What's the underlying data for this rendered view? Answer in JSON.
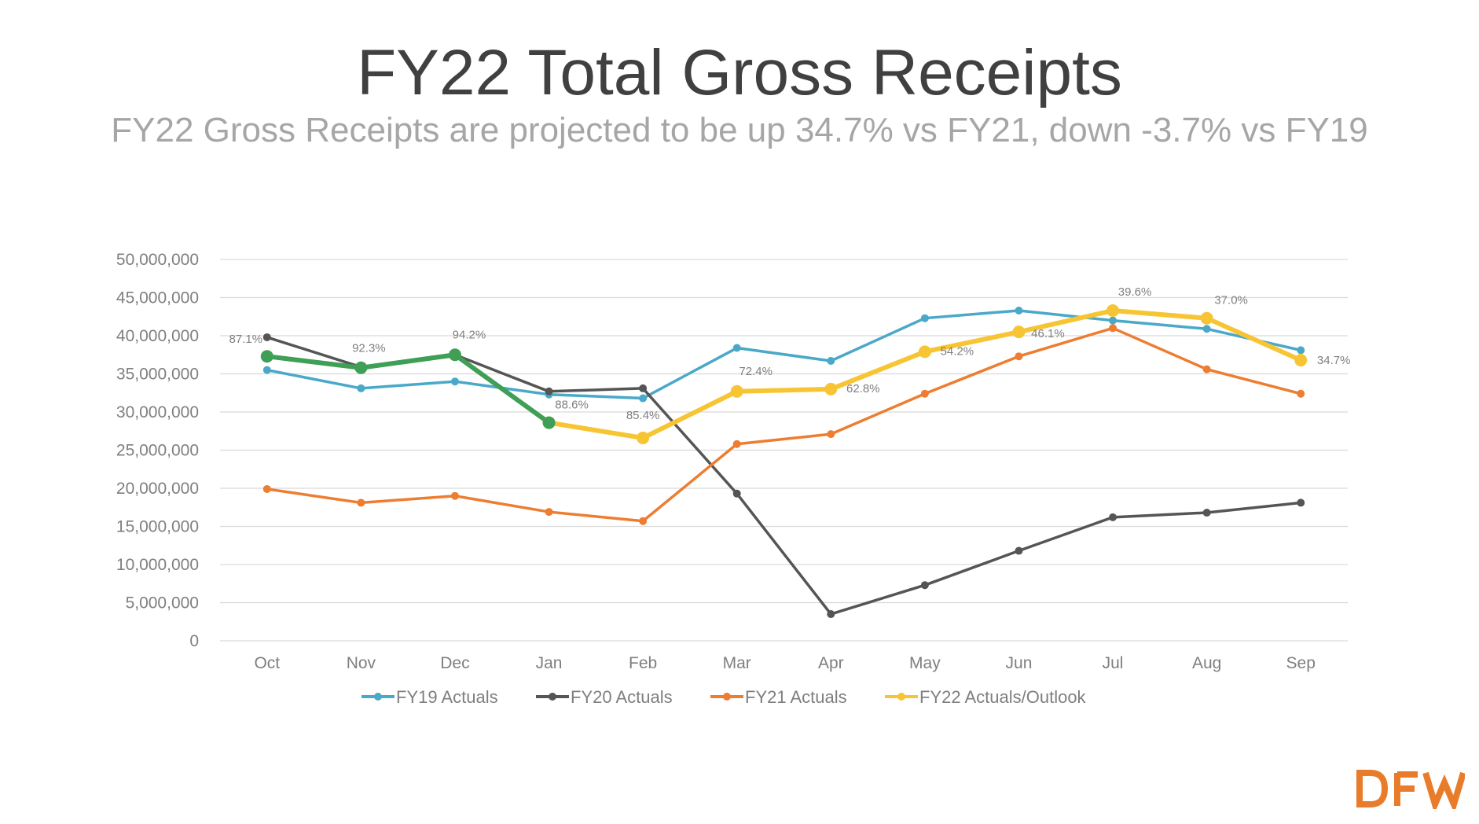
{
  "chart_data": {
    "type": "line",
    "title": "FY22 Total Gross Receipts",
    "subtitle": "FY22 Gross Receipts are projected to be up 34.7% vs FY21, down -3.7% vs FY19",
    "categories": [
      "Oct",
      "Nov",
      "Dec",
      "Jan",
      "Feb",
      "Mar",
      "Apr",
      "May",
      "Jun",
      "Jul",
      "Aug",
      "Sep"
    ],
    "y_ticks": [
      "50,000,000",
      "45,000,000",
      "40,000,000",
      "35,000,000",
      "30,000,000",
      "25,000,000",
      "20,000,000",
      "15,000,000",
      "10,000,000",
      "5,000,000",
      "0"
    ],
    "ylim": [
      0,
      50000000
    ],
    "grid": true,
    "legend_position": "bottom",
    "series": [
      {
        "name": "FY19 Actuals",
        "color": "#4aa8c9",
        "values": [
          35500000,
          33100000,
          34000000,
          32300000,
          31800000,
          38400000,
          36700000,
          42300000,
          43300000,
          42000000,
          40900000,
          38100000
        ]
      },
      {
        "name": "FY20 Actuals",
        "color": "#555555",
        "values": [
          39800000,
          35900000,
          37500000,
          32700000,
          33100000,
          19300000,
          3500000,
          7300000,
          11800000,
          16200000,
          16800000,
          18100000
        ]
      },
      {
        "name": "FY21 Actuals",
        "color": "#ed7d31",
        "values": [
          19900000,
          18100000,
          19000000,
          16900000,
          15700000,
          25800000,
          27100000,
          32400000,
          37300000,
          41000000,
          35600000,
          32400000
        ]
      },
      {
        "name": "FY22 Actuals/Outlook",
        "color": "#f7c534",
        "values": [
          null,
          null,
          null,
          28600000,
          26600000,
          32700000,
          33000000,
          37900000,
          40500000,
          43300000,
          42300000,
          36800000
        ]
      }
    ],
    "actuals_overlay": {
      "color": "#3f9f56",
      "values": [
        37300000,
        35800000,
        37500000,
        28600000
      ]
    },
    "data_labels": [
      {
        "category": "Oct",
        "text": "87.1%"
      },
      {
        "category": "Nov",
        "text": "92.3%"
      },
      {
        "category": "Dec",
        "text": "94.2%"
      },
      {
        "category": "Jan",
        "text": "88.6%"
      },
      {
        "category": "Feb",
        "text": "85.4%"
      },
      {
        "category": "Mar",
        "text": "72.4%"
      },
      {
        "category": "Apr",
        "text": "62.8%"
      },
      {
        "category": "May",
        "text": "54.2%"
      },
      {
        "category": "Jun",
        "text": "46.1%"
      },
      {
        "category": "Jul",
        "text": "39.6%"
      },
      {
        "category": "Aug",
        "text": "37.0%"
      },
      {
        "category": "Sep",
        "text": "34.7%"
      }
    ]
  },
  "logo": {
    "text": "DFW",
    "color": "#e97c2b"
  }
}
